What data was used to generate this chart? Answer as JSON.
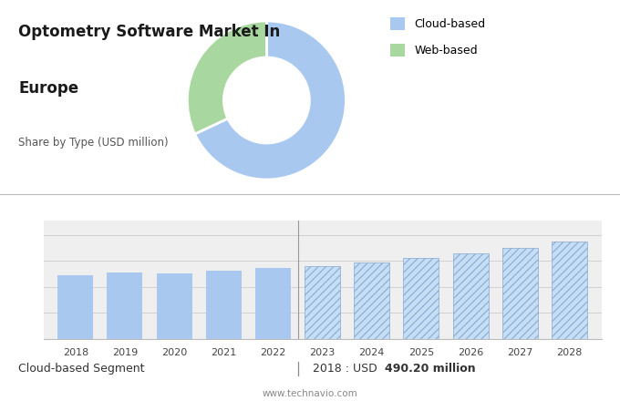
{
  "title_line1": "Optometry Software Market In",
  "title_line2": "Europe",
  "subtitle": "Share by Type (USD million)",
  "background_top": "#d8d8d8",
  "background_bottom": "#efefef",
  "donut_colors": [
    "#a8c8f0",
    "#a8d8a0"
  ],
  "donut_labels": [
    "Cloud-based",
    "Web-based"
  ],
  "donut_sizes": [
    68,
    32
  ],
  "bar_years_solid": [
    2018,
    2019,
    2020,
    2021,
    2022
  ],
  "bar_years_hatch": [
    2023,
    2024,
    2025,
    2026,
    2027,
    2028
  ],
  "bar_values_solid": [
    490,
    510,
    505,
    525,
    545
  ],
  "bar_values_hatch": [
    560,
    590,
    625,
    660,
    700,
    745
  ],
  "bar_color_solid": "#a8c8f0",
  "bar_color_hatch": "#c5ddf5",
  "bar_hatch_pattern": "////",
  "hatch_color": "#88aad0",
  "footer_left": "Cloud-based Segment",
  "footer_right_prefix": "2018 : USD ",
  "footer_right_bold": "490.20 million",
  "footer_website": "www.technavio.com",
  "legend_labels": [
    "Cloud-based",
    "Web-based"
  ],
  "legend_colors": [
    "#a8c8f0",
    "#a8d8a0"
  ],
  "title_fontsize": 12,
  "subtitle_fontsize": 8.5,
  "bar_label_fontsize": 8,
  "footer_fontsize": 9
}
